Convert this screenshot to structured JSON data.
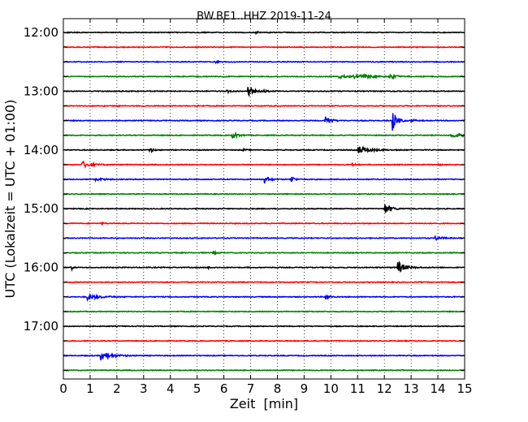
{
  "chart_data": {
    "type": "line",
    "title": "BW.BE1..HHZ 2019-11-24",
    "xlabel": "Zeit  [min]",
    "ylabel": "UTC (Lokalzeit = UTC + 01:00)",
    "xlim": [
      0,
      15
    ],
    "x_ticks": [
      "0",
      "1",
      "2",
      "3",
      "4",
      "5",
      "6",
      "7",
      "8",
      "9",
      "10",
      "11",
      "12",
      "13",
      "14",
      "15"
    ],
    "y_tick_labels": [
      "12:00",
      "13:00",
      "14:00",
      "15:00",
      "16:00",
      "17:00"
    ],
    "grid": "vertical dotted",
    "colors": {
      "black": "#000000",
      "red": "#ff0000",
      "blue": "#0000ff",
      "green": "#007f00"
    },
    "trace_interval_min": 15,
    "series": [
      {
        "start": "12:00",
        "color": "black",
        "events": [
          [
            7.2,
            0.15,
            0.1
          ]
        ]
      },
      {
        "start": "12:15",
        "color": "red",
        "events": [
          [
            2.2,
            0.1,
            0.1
          ]
        ]
      },
      {
        "start": "12:30",
        "color": "blue",
        "events": [
          [
            5.7,
            0.15,
            0.15
          ],
          [
            6.3,
            0.1,
            0.1
          ]
        ]
      },
      {
        "start": "12:45",
        "color": "green",
        "events": [
          [
            10.3,
            0.3,
            0.4
          ],
          [
            10.8,
            0.3,
            0.3
          ],
          [
            11.1,
            0.4,
            0.3
          ],
          [
            12.2,
            0.5,
            0.2
          ]
        ]
      },
      {
        "start": "13:00",
        "color": "black",
        "events": [
          [
            6.1,
            0.3,
            0.1
          ],
          [
            6.9,
            0.9,
            0.2
          ],
          [
            7.5,
            0.2,
            0.1
          ]
        ]
      },
      {
        "start": "13:15",
        "color": "red",
        "events": [
          [
            2.0,
            0.15,
            0.1
          ],
          [
            5.0,
            0.15,
            0.1
          ]
        ]
      },
      {
        "start": "13:30",
        "color": "blue",
        "events": [
          [
            9.8,
            1.0,
            0.15
          ],
          [
            12.3,
            2.0,
            0.15
          ],
          [
            13.0,
            0.3,
            0.1
          ]
        ]
      },
      {
        "start": "13:45",
        "color": "green",
        "events": [
          [
            6.3,
            0.6,
            0.2
          ],
          [
            14.5,
            0.4,
            0.4
          ]
        ]
      },
      {
        "start": "14:00",
        "color": "black",
        "events": [
          [
            3.2,
            0.4,
            0.15
          ],
          [
            6.7,
            0.2,
            0.1
          ],
          [
            11.0,
            0.7,
            0.4
          ]
        ]
      },
      {
        "start": "14:15",
        "color": "red",
        "events": [
          [
            0.7,
            0.6,
            0.3
          ],
          [
            10.8,
            0.3,
            0.1
          ],
          [
            14.0,
            0.15,
            0.1
          ]
        ]
      },
      {
        "start": "14:30",
        "color": "blue",
        "events": [
          [
            1.2,
            0.2,
            0.3
          ],
          [
            7.5,
            0.8,
            0.15
          ],
          [
            8.5,
            0.8,
            0.1
          ]
        ]
      },
      {
        "start": "14:45",
        "color": "green",
        "events": []
      },
      {
        "start": "15:00",
        "color": "black",
        "events": [
          [
            12.0,
            1.0,
            0.2
          ]
        ]
      },
      {
        "start": "15:15",
        "color": "red",
        "events": [
          [
            1.4,
            0.15,
            0.1
          ]
        ]
      },
      {
        "start": "15:30",
        "color": "blue",
        "events": [
          [
            13.9,
            0.4,
            0.2
          ]
        ]
      },
      {
        "start": "15:45",
        "color": "green",
        "events": [
          [
            5.6,
            0.3,
            0.1
          ]
        ]
      },
      {
        "start": "16:00",
        "color": "black",
        "events": [
          [
            0.3,
            0.5,
            0.05
          ],
          [
            5.4,
            0.2,
            0.1
          ],
          [
            12.5,
            1.1,
            0.25
          ]
        ]
      },
      {
        "start": "16:15",
        "color": "red",
        "events": []
      },
      {
        "start": "16:30",
        "color": "blue",
        "events": [
          [
            0.9,
            0.5,
            0.4
          ],
          [
            9.8,
            0.6,
            0.1
          ]
        ]
      },
      {
        "start": "16:45",
        "color": "green",
        "events": []
      },
      {
        "start": "17:00",
        "color": "black",
        "events": []
      },
      {
        "start": "17:15",
        "color": "red",
        "events": []
      },
      {
        "start": "17:30",
        "color": "blue",
        "events": [
          [
            1.4,
            0.8,
            0.35
          ]
        ]
      },
      {
        "start": "17:45",
        "color": "green",
        "events": [
          [
            12.6,
            0.15,
            0.05
          ]
        ]
      }
    ]
  }
}
